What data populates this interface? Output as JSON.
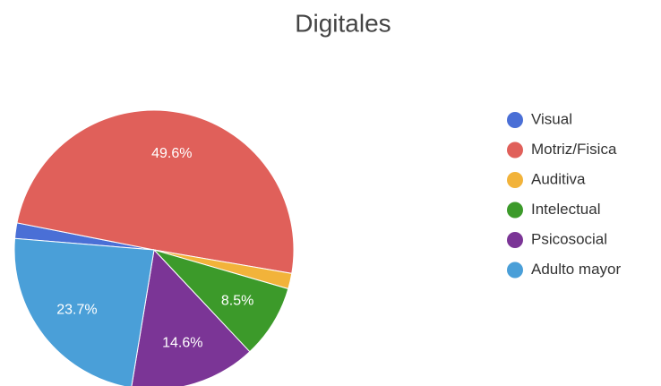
{
  "chart_data": {
    "type": "pie",
    "title": "Digitales",
    "categories": [
      "Visual",
      "Motriz/Fisica",
      "Auditiva",
      "Intelectual",
      "Psicosocial",
      "Adulto mayor"
    ],
    "values": [
      1.8,
      49.6,
      1.8,
      8.5,
      14.6,
      23.7
    ],
    "value_labels": [
      null,
      "49.6%",
      null,
      "8.5%",
      "14.6%",
      "23.7%"
    ],
    "colors": [
      "#4a6fd6",
      "#e0605a",
      "#f2b33a",
      "#3c9a2a",
      "#7b3596",
      "#4a9fd8"
    ],
    "legend": "right"
  }
}
